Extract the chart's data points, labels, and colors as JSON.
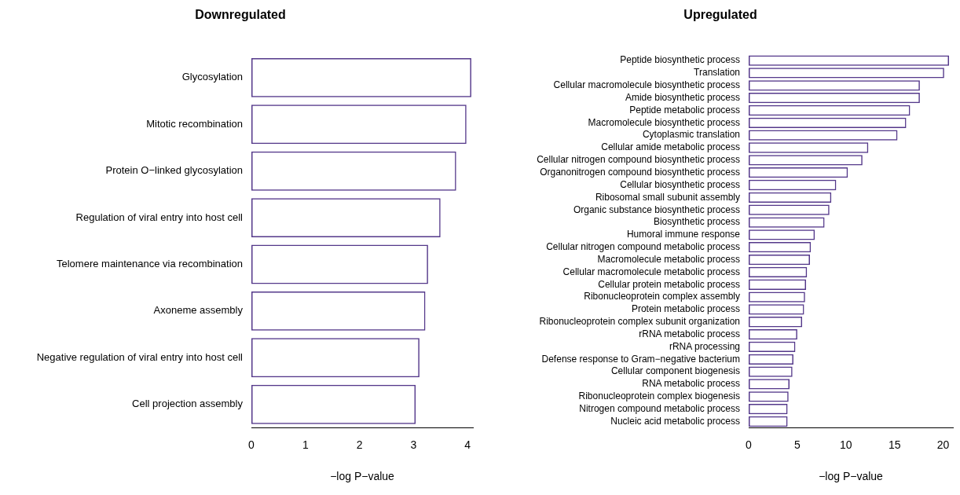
{
  "chart_data": [
    {
      "type": "bar",
      "orientation": "horizontal",
      "title": "Downregulated",
      "xlabel": "−log P−value",
      "categories": [
        "Glycosylation",
        "Mitotic recombination",
        "Protein O−linked glycosylation",
        "Regulation of viral entry into host cell",
        "Telomere maintenance via recombination",
        "Axoneme assembly",
        "Negative regulation of viral entry into host cell",
        "Cell projection assembly"
      ],
      "values": [
        4.07,
        3.98,
        3.79,
        3.5,
        3.27,
        3.22,
        3.11,
        3.04
      ],
      "color": "#54388a",
      "xlim": [
        0,
        4.1
      ],
      "xticks": [
        0,
        1,
        2,
        3,
        4
      ]
    },
    {
      "type": "bar",
      "orientation": "horizontal",
      "title": "Upregulated",
      "xlabel": "−log P−value",
      "categories": [
        "Peptide biosynthetic process",
        "Translation",
        "Cellular macromolecule biosynthetic process",
        "Amide biosynthetic process",
        "Peptide metabolic process",
        "Macromolecule biosynthetic process",
        "Cytoplasmic translation",
        "Cellular amide metabolic process",
        "Cellular nitrogen compound biosynthetic process",
        "Organonitrogen compound biosynthetic process",
        "Cellular biosynthetic process",
        "Ribosomal small subunit assembly",
        "Organic substance biosynthetic process",
        "Biosynthetic process",
        "Humoral immune response",
        "Cellular nitrogen compound metabolic process",
        "Macromolecule metabolic process",
        "Cellular macromolecule metabolic process",
        "Cellular protein metabolic process",
        "Ribonucleoprotein complex assembly",
        "Protein metabolic process",
        "Ribonucleoprotein complex subunit organization",
        "rRNA metabolic process",
        "rRNA processing",
        "Defense response to Gram−negative bacterium",
        "Cellular component biogenesis",
        "RNA metabolic process",
        "Ribonucleoprotein complex biogenesis",
        "Nitrogen compound metabolic process",
        "Nucleic acid metabolic process"
      ],
      "values": [
        20.6,
        20.1,
        17.6,
        17.6,
        16.6,
        16.2,
        15.3,
        12.3,
        11.7,
        10.2,
        9.0,
        8.5,
        8.3,
        7.8,
        6.8,
        6.4,
        6.3,
        6.0,
        5.9,
        5.8,
        5.7,
        5.5,
        5.0,
        4.8,
        4.6,
        4.5,
        4.2,
        4.1,
        4.0,
        4.0
      ],
      "color": "#54388a",
      "xlim": [
        0,
        21
      ],
      "xticks": [
        0,
        5,
        10,
        15,
        20
      ]
    }
  ]
}
